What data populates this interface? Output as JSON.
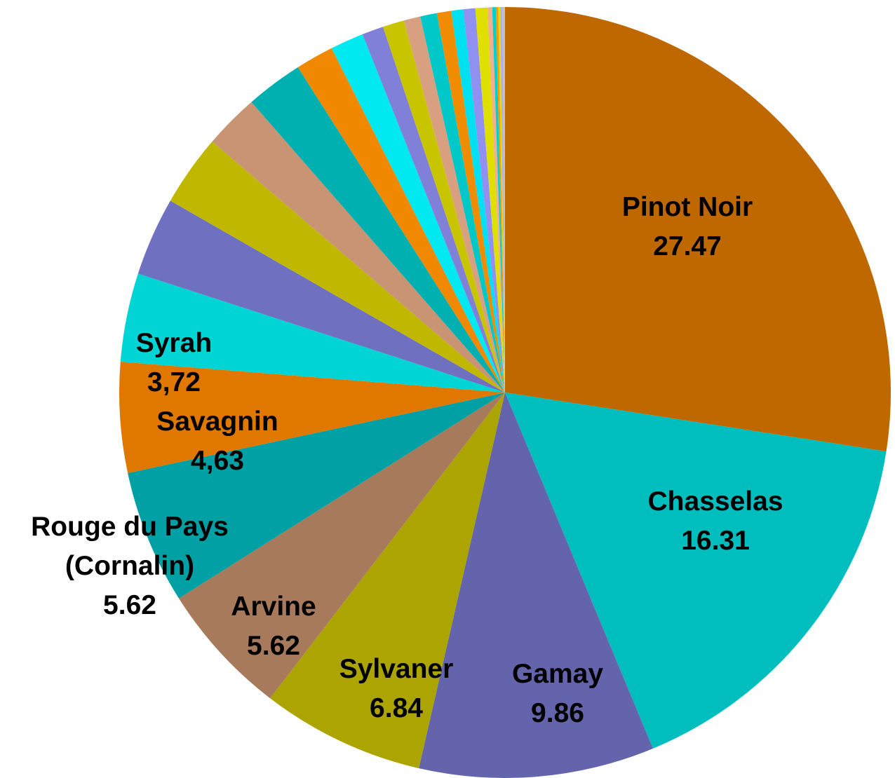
{
  "chart_data": {
    "type": "pie",
    "categories": [
      "Pinot Noir",
      "Chasselas",
      "Gamay",
      "Sylvaner",
      "Arvine",
      "Rouge du Pays\n(Cornalin)",
      "Savagnin",
      "Syrah",
      null,
      null,
      null,
      null,
      null,
      null,
      null,
      null,
      null,
      null,
      null,
      null,
      null,
      null,
      null,
      null,
      null,
      null,
      null,
      null
    ],
    "values": [
      27.47,
      16.31,
      9.86,
      6.84,
      5.62,
      5.62,
      4.63,
      3.72,
      3.3,
      3.0,
      2.3,
      2.4,
      1.6,
      1.4,
      0.9,
      0.9,
      0.7,
      0.7,
      0.6,
      0.5,
      0.5,
      0.5,
      0.2,
      0.15,
      0.1,
      0.08,
      0.1,
      0.1
    ],
    "value_labels": [
      "27.47",
      "16.31",
      "9.86",
      "6.84",
      "5.62",
      "5.62",
      "4,63",
      "3,72",
      null,
      null,
      null,
      null,
      null,
      null,
      null,
      null,
      null,
      null,
      null,
      null,
      null,
      null,
      null,
      null,
      null,
      null,
      null,
      null
    ],
    "colors": [
      "#c06800",
      "#00bebe",
      "#6464ac",
      "#aca400",
      "#a87a5c",
      "#00a0a4",
      "#e07800",
      "#00d4d4",
      "#7070c0",
      "#c0b800",
      "#c89474",
      "#00b0b0",
      "#f08800",
      "#00e8f0",
      "#8080d8",
      "#c8c400",
      "#d8a080",
      "#00c8c8",
      "#f08c00",
      "#00e0f0",
      "#9090f0",
      "#e0e000",
      "#f0b090",
      "#00d0d0",
      "#ff9800",
      "#e0e000",
      "#b0b0f0",
      "#c0c0c0"
    ]
  }
}
